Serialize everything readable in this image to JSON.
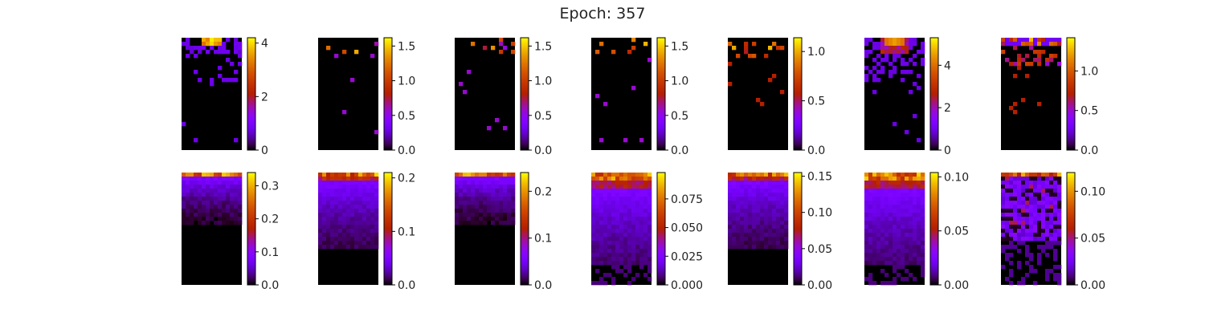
{
  "chart_data": {
    "type": "heatmap",
    "title": "Epoch: 357",
    "colormap": "gnuplot",
    "grid": false,
    "layout": {
      "rows": 2,
      "cols": 7
    },
    "panels": [
      {
        "row": 0,
        "col": 0,
        "vmax": 4.2,
        "ticks": [
          0,
          2,
          4
        ],
        "tick_labels": [
          "0",
          "2",
          "4"
        ],
        "pattern": "sparse-hot-top"
      },
      {
        "row": 0,
        "col": 1,
        "vmax": 1.62,
        "ticks": [
          0.0,
          0.5,
          1.0,
          1.5
        ],
        "tick_labels": [
          "0.0",
          "0.5",
          "1.0",
          "1.5"
        ],
        "pattern": "very-sparse"
      },
      {
        "row": 0,
        "col": 2,
        "vmax": 1.62,
        "ticks": [
          0.0,
          0.5,
          1.0,
          1.5
        ],
        "tick_labels": [
          "0.0",
          "0.5",
          "1.0",
          "1.5"
        ],
        "pattern": "very-sparse"
      },
      {
        "row": 0,
        "col": 3,
        "vmax": 1.62,
        "ticks": [
          0.0,
          0.5,
          1.0,
          1.5
        ],
        "tick_labels": [
          "0.0",
          "0.5",
          "1.0",
          "1.5"
        ],
        "pattern": "very-sparse"
      },
      {
        "row": 0,
        "col": 4,
        "vmax": 1.14,
        "ticks": [
          0.0,
          0.5,
          1.0
        ],
        "tick_labels": [
          "0.0",
          "0.5",
          "1.0"
        ],
        "pattern": "sparse-orange"
      },
      {
        "row": 0,
        "col": 5,
        "vmax": 5.3,
        "ticks": [
          0,
          2,
          4
        ],
        "tick_labels": [
          "0",
          "2",
          "4"
        ],
        "pattern": "hot-top-purple"
      },
      {
        "row": 0,
        "col": 6,
        "vmax": 1.42,
        "ticks": [
          0.0,
          0.5,
          1.0
        ],
        "tick_labels": [
          "0.0",
          "0.5",
          "1.0"
        ],
        "pattern": "orange-top-band"
      },
      {
        "row": 1,
        "col": 0,
        "vmax": 0.34,
        "ticks": [
          0.0,
          0.1,
          0.2,
          0.3
        ],
        "tick_labels": [
          "0.0",
          "0.1",
          "0.2",
          "0.3"
        ],
        "pattern": "dense-fade-short"
      },
      {
        "row": 1,
        "col": 1,
        "vmax": 0.21,
        "ticks": [
          0.0,
          0.1,
          0.2
        ],
        "tick_labels": [
          "0.0",
          "0.1",
          "0.2"
        ],
        "pattern": "dense-fade-medium"
      },
      {
        "row": 1,
        "col": 2,
        "vmax": 0.24,
        "ticks": [
          0.0,
          0.1,
          0.2
        ],
        "tick_labels": [
          "0.0",
          "0.1",
          "0.2"
        ],
        "pattern": "dense-fade-short"
      },
      {
        "row": 1,
        "col": 3,
        "vmax": 0.098,
        "ticks": [
          0.0,
          0.025,
          0.05,
          0.075
        ],
        "tick_labels": [
          "0.000",
          "0.025",
          "0.050",
          "0.075"
        ],
        "pattern": "dense-fade-long"
      },
      {
        "row": 1,
        "col": 4,
        "vmax": 0.155,
        "ticks": [
          0.0,
          0.05,
          0.1,
          0.15
        ],
        "tick_labels": [
          "0.00",
          "0.05",
          "0.10",
          "0.15"
        ],
        "pattern": "dense-fade-medium"
      },
      {
        "row": 1,
        "col": 5,
        "vmax": 0.104,
        "ticks": [
          0.0,
          0.05,
          0.1
        ],
        "tick_labels": [
          "0.00",
          "0.05",
          "0.10"
        ],
        "pattern": "dense-fade-long"
      },
      {
        "row": 1,
        "col": 6,
        "vmax": 0.12,
        "ticks": [
          0.0,
          0.05,
          0.1
        ],
        "tick_labels": [
          "0.00",
          "0.05",
          "0.10"
        ],
        "pattern": "patchy"
      }
    ]
  }
}
